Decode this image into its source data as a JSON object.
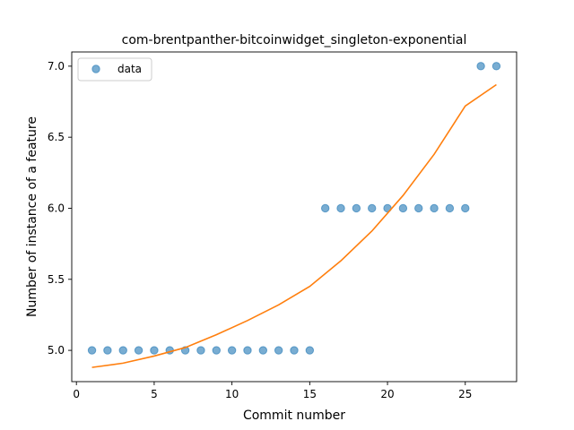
{
  "chart_data": {
    "type": "scatter",
    "title": "com-brentpanther-bitcoinwidget_singleton-exponential",
    "xlabel": "Commit number",
    "ylabel": "Number of instance of a feature",
    "xlim": [
      -0.3,
      28.3
    ],
    "ylim": [
      4.78,
      7.1
    ],
    "xticks": [
      0,
      5,
      10,
      15,
      20,
      25
    ],
    "xtick_labels": [
      "0",
      "5",
      "10",
      "15",
      "20",
      "25"
    ],
    "yticks": [
      5.0,
      5.5,
      6.0,
      6.5,
      7.0
    ],
    "ytick_labels": [
      "5.0",
      "5.5",
      "6.0",
      "6.5",
      "7.0"
    ],
    "grid": false,
    "legend": {
      "placement": "top-left",
      "entries": [
        "data"
      ]
    },
    "series": [
      {
        "name": "data",
        "kind": "scatter",
        "color": "#1f77b4",
        "x": [
          1,
          2,
          3,
          4,
          5,
          6,
          7,
          8,
          9,
          10,
          11,
          12,
          13,
          14,
          15,
          16,
          17,
          18,
          19,
          20,
          21,
          22,
          23,
          24,
          25,
          26,
          27
        ],
        "y": [
          5,
          5,
          5,
          5,
          5,
          5,
          5,
          5,
          5,
          5,
          5,
          5,
          5,
          5,
          5,
          6,
          6,
          6,
          6,
          6,
          6,
          6,
          6,
          6,
          6,
          7,
          7
        ]
      },
      {
        "kind": "line",
        "color": "#ff7f0e",
        "x": [
          1,
          3,
          5,
          7,
          9,
          11,
          13,
          15,
          17,
          19,
          21,
          23,
          25,
          27
        ],
        "y": [
          4.88,
          4.91,
          4.96,
          5.02,
          5.11,
          5.21,
          5.32,
          5.45,
          5.63,
          5.84,
          6.09,
          6.38,
          6.72,
          6.87
        ]
      }
    ]
  }
}
